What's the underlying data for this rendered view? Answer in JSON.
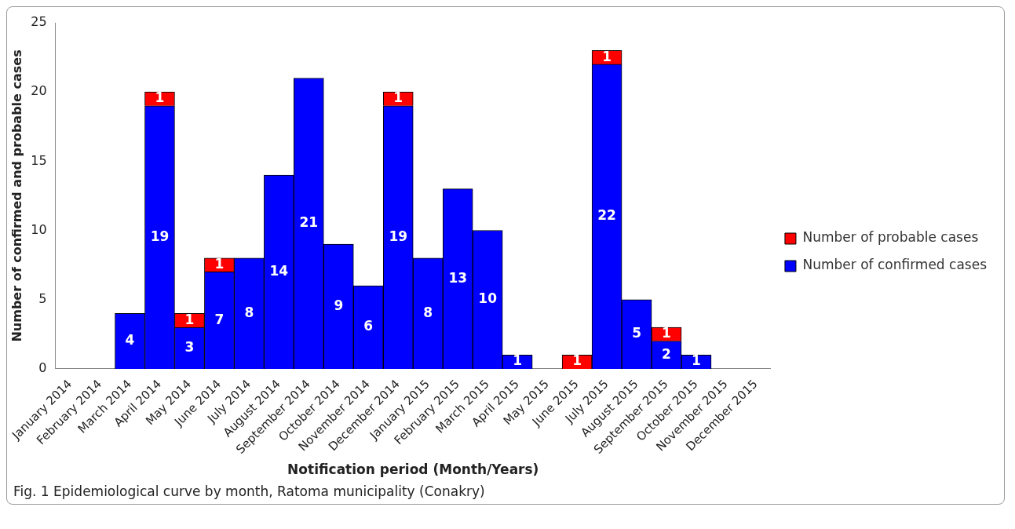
{
  "chart_data": {
    "type": "bar",
    "stacked": true,
    "xlabel": "Notification period (Month/Years)",
    "ylabel": "Number of confirmed and probable cases",
    "categories": [
      "January 2014",
      "February 2014",
      "March 2014",
      "April 2014",
      "May 2014",
      "June 2014",
      "July 2014",
      "August 2014",
      "September 2014",
      "October 2014",
      "November 2014",
      "December 2014",
      "January 2015",
      "February 2015",
      "March 2015",
      "April 2015",
      "May 2015",
      "June 2015",
      "July 2015",
      "August 2015",
      "September 2015",
      "October 2015",
      "November 2015",
      "December 2015"
    ],
    "series": [
      {
        "name": "Number of confirmed cases",
        "color": "#0000ff",
        "values": [
          null,
          null,
          4,
          19,
          3,
          7,
          8,
          14,
          21,
          9,
          6,
          19,
          8,
          13,
          10,
          1,
          null,
          null,
          22,
          5,
          2,
          1,
          null,
          null
        ]
      },
      {
        "name": "Number of probable cases",
        "color": "#ff0000",
        "values": [
          null,
          null,
          null,
          1,
          1,
          1,
          null,
          null,
          null,
          null,
          null,
          1,
          null,
          null,
          null,
          null,
          null,
          1,
          1,
          null,
          1,
          null,
          null,
          null
        ]
      }
    ],
    "ylim": [
      0,
      25
    ],
    "yticks": [
      0,
      5,
      10,
      15,
      20,
      25
    ],
    "grid": false,
    "legend": "right",
    "data_labels": true,
    "annotations": [
      "Fig. 1 Epidemiological curve by month, Ratoma municipality (Conakry)"
    ]
  }
}
